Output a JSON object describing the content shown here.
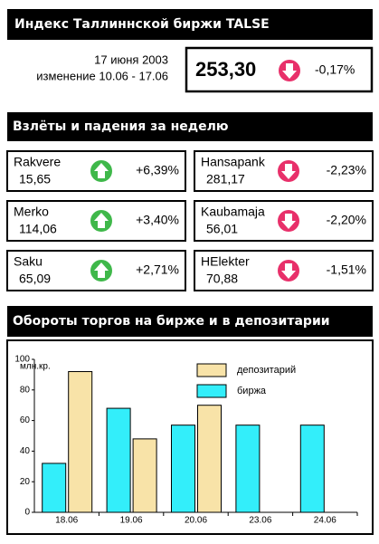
{
  "header": {
    "title": "Индекс Таллиннской биржи TALSE",
    "date": "17 июня 2003",
    "period": "изменение 10.06 - 17.06",
    "index_value": "253,30",
    "index_change": "-0,17%"
  },
  "movers": {
    "title": "Взлёты и падения за неделю",
    "stocks": [
      {
        "name": "Rakvere",
        "price": "15,65",
        "change": "+6,39%"
      },
      {
        "name": "Hansapank",
        "price": "281,17",
        "change": "-2,23%"
      },
      {
        "name": "Merko",
        "price": "114,06",
        "change": "+3,40%"
      },
      {
        "name": "Kaubamaja",
        "price": "56,01",
        "change": "-2,20%"
      },
      {
        "name": "Saku",
        "price": "65,09",
        "change": "+2,71%"
      },
      {
        "name": "HElekter",
        "price": "70,88",
        "change": "-1,51%"
      }
    ]
  },
  "chart_data": {
    "type": "bar",
    "title": "Обороты торгов на бирже и в депозитарии",
    "ylabel": "млн.кр.",
    "categories": [
      "18.06",
      "19.06",
      "20.06",
      "23.06",
      "24.06"
    ],
    "series": [
      {
        "name": "депозитарий",
        "color": "#f8e3a8",
        "values": [
          92,
          48,
          70,
          null,
          null
        ]
      },
      {
        "name": "биржа",
        "color": "#33eefa",
        "values": [
          32,
          68,
          57,
          57,
          57
        ]
      }
    ],
    "ylim": [
      0,
      100
    ],
    "yticks": [
      0,
      20,
      40,
      60,
      80,
      100
    ],
    "grid": false
  }
}
